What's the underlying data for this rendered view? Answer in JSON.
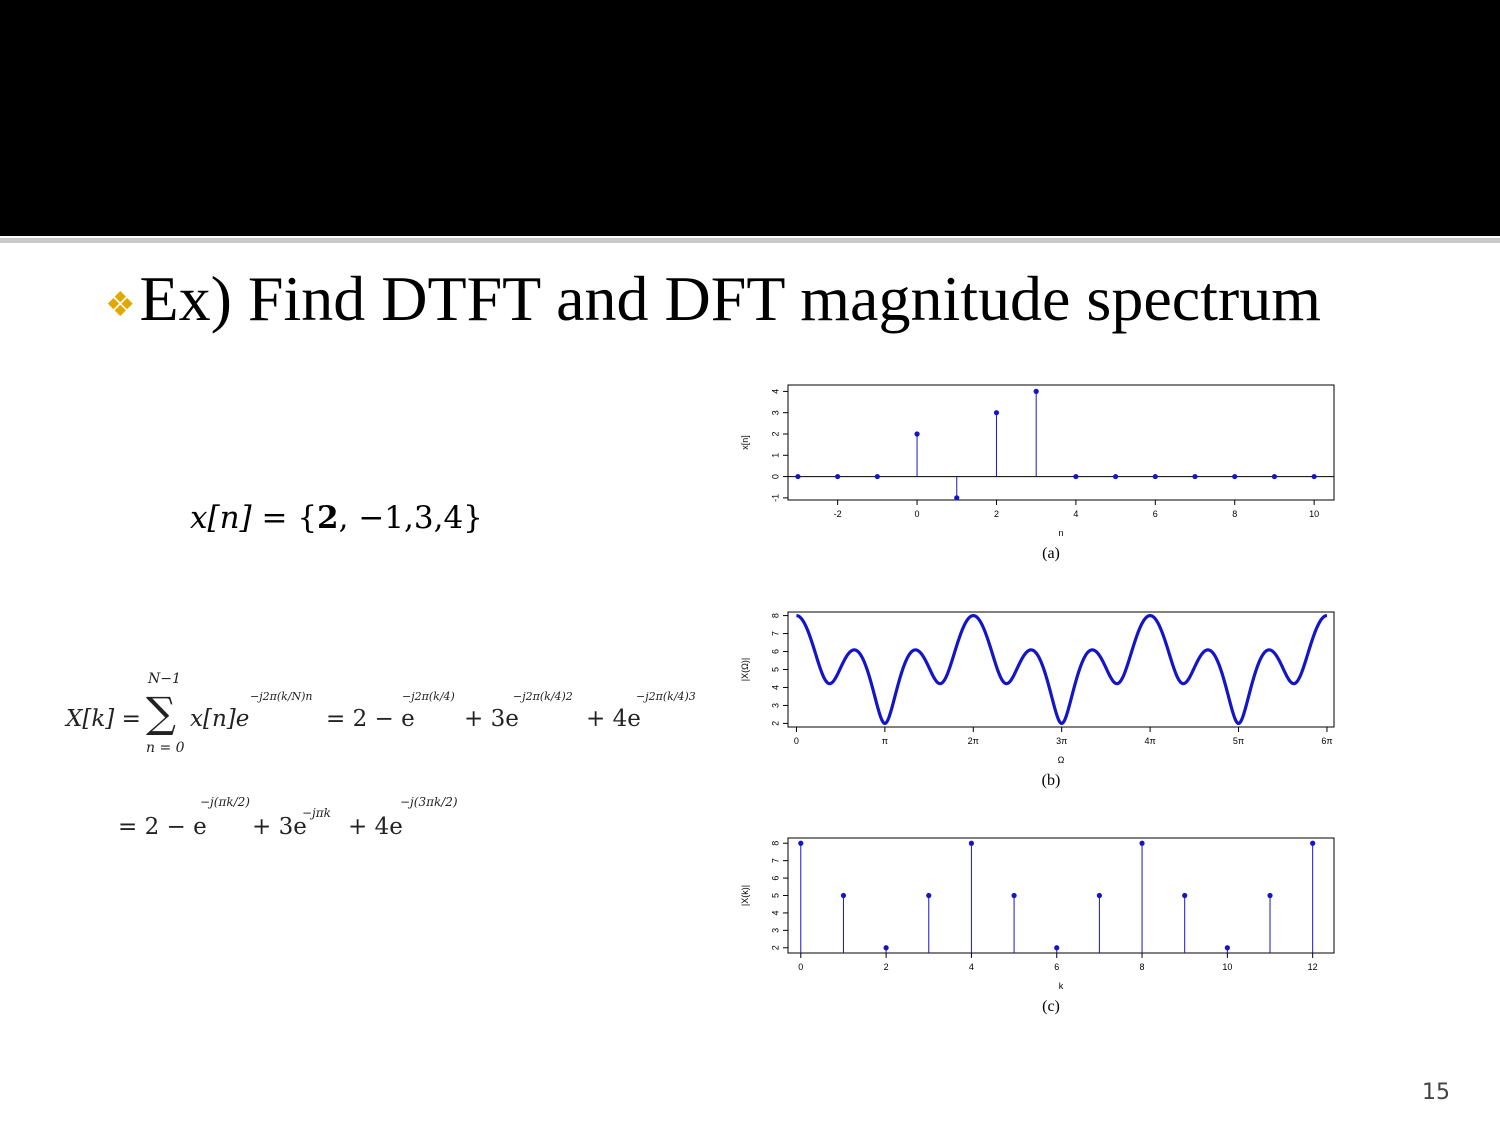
{
  "heading": {
    "bullet": "❖",
    "text": "Ex) Find DTFT and DFT magnitude spectrum"
  },
  "sequence": {
    "lhs": "x[n]",
    "eq": " = {",
    "first": "2",
    "rest": ", −1,3,4}"
  },
  "equations": {
    "line1": {
      "lhs": "X[k] =",
      "sum_top": "N−1",
      "sum": "∑",
      "sum_bottom": "n = 0",
      "term": "x[n]e",
      "exp1": "−j2π(k/N)n",
      "rest1": "= 2 − e",
      "exp2": "−j2π(k/4)",
      "rest2": "+ 3e",
      "exp3": "−j2π(k/4)2",
      "rest3": "+ 4e",
      "exp4": "−j2π(k/4)3"
    },
    "line2": {
      "a": "= 2 − e",
      "exp1": "−j(πk/2)",
      "b": "+ 3e",
      "exp2": "−jπk",
      "c": "+ 4e",
      "exp3": "−j(3πk/2)"
    }
  },
  "page_number": "15",
  "colors": {
    "series": "#1515c8",
    "bullet": "#e0a800"
  },
  "chart_data": [
    {
      "type": "scatter",
      "style": "stem",
      "caption": "(a)",
      "xlabel": "n",
      "ylabel": "x[n]",
      "x": [
        -3,
        -2,
        -1,
        0,
        1,
        2,
        3,
        4,
        5,
        6,
        7,
        8,
        9,
        10
      ],
      "y": [
        0,
        0,
        0,
        2,
        -1,
        3,
        4,
        0,
        0,
        0,
        0,
        0,
        0,
        0
      ],
      "xlim": [
        -3.25,
        10.5
      ],
      "ylim": [
        -1.1,
        4.3
      ],
      "xticks": [
        -2,
        0,
        2,
        4,
        6,
        8,
        10
      ],
      "xtick_labels": [
        "-2",
        "0",
        "2",
        "4",
        "6",
        "8",
        "10"
      ],
      "yticks": [
        -1,
        0,
        1,
        2,
        3,
        4
      ],
      "ytick_labels": [
        "-1",
        "0",
        "1",
        "2",
        "3",
        "4"
      ]
    },
    {
      "type": "line",
      "caption": "(b)",
      "xlabel": "Ω",
      "ylabel": "|X(Ω)|",
      "function": "|2 - e^{-jΩ} + 3e^{-j2Ω} + 4e^{-j3Ω}|",
      "x_range": [
        0,
        18.85
      ],
      "xlim": [
        -0.3,
        19.1
      ],
      "ylim": [
        1.8,
        8.2
      ],
      "xticks": [
        0,
        3.1416,
        6.2832,
        9.4248,
        12.5664,
        15.708,
        18.8496
      ],
      "xtick_labels": [
        "0",
        "π",
        "2π",
        "3π",
        "4π",
        "5π",
        "6π"
      ],
      "yticks": [
        2,
        3,
        4,
        5,
        6,
        7,
        8
      ],
      "ytick_labels": [
        "2",
        "3",
        "4",
        "5",
        "6",
        "7",
        "8"
      ]
    },
    {
      "type": "scatter",
      "style": "stem",
      "caption": "(c)",
      "xlabel": "k",
      "ylabel": "|X(k)|",
      "x": [
        0,
        1,
        2,
        3,
        4,
        5,
        6,
        7,
        8,
        9,
        10,
        11,
        12
      ],
      "y": [
        8,
        5,
        2,
        5,
        8,
        5,
        2,
        5,
        8,
        5,
        2,
        5,
        8
      ],
      "xlim": [
        -0.3,
        12.5
      ],
      "ylim": [
        1.7,
        8.3
      ],
      "xticks": [
        0,
        2,
        4,
        6,
        8,
        10,
        12
      ],
      "xtick_labels": [
        "0",
        "2",
        "4",
        "6",
        "8",
        "10",
        "12"
      ],
      "yticks": [
        2,
        3,
        4,
        5,
        6,
        7,
        8
      ],
      "ytick_labels": [
        "2",
        "3",
        "4",
        "5",
        "6",
        "7",
        "8"
      ]
    }
  ]
}
